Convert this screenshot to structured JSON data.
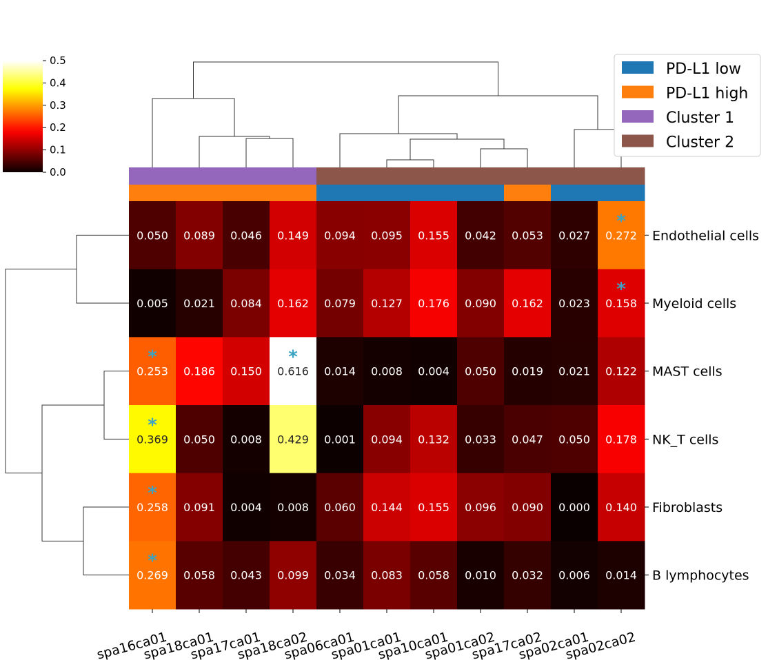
{
  "chart_data": {
    "type": "heatmap",
    "title": "",
    "columns": [
      "spa16ca01",
      "spa18ca01",
      "spa17ca01",
      "spa18ca02",
      "spa06ca01",
      "spa01ca01",
      "spa10ca01",
      "spa01ca02",
      "spa17ca02",
      "spa02ca01",
      "spa02ca02"
    ],
    "rows": [
      "Endothelial cells",
      "Myeloid cells",
      "MAST cells",
      "NK_T cells",
      "Fibroblasts",
      "B lymphocytes"
    ],
    "values": [
      [
        0.05,
        0.089,
        0.046,
        0.149,
        0.094,
        0.095,
        0.155,
        0.042,
        0.053,
        0.027,
        0.272
      ],
      [
        0.005,
        0.021,
        0.084,
        0.162,
        0.079,
        0.127,
        0.176,
        0.09,
        0.162,
        0.023,
        0.158
      ],
      [
        0.253,
        0.186,
        0.15,
        0.616,
        0.014,
        0.008,
        0.004,
        0.05,
        0.019,
        0.021,
        0.122
      ],
      [
        0.369,
        0.05,
        0.008,
        0.429,
        0.001,
        0.094,
        0.132,
        0.033,
        0.047,
        0.05,
        0.178
      ],
      [
        0.258,
        0.091,
        0.004,
        0.008,
        0.06,
        0.144,
        0.155,
        0.096,
        0.09,
        0.0,
        0.14
      ],
      [
        0.269,
        0.058,
        0.043,
        0.099,
        0.034,
        0.083,
        0.058,
        0.01,
        0.032,
        0.006,
        0.014
      ]
    ],
    "significant": [
      [
        0,
        10
      ],
      [
        1,
        10
      ],
      [
        2,
        0
      ],
      [
        2,
        3
      ],
      [
        3,
        0
      ],
      [
        4,
        0
      ],
      [
        5,
        0
      ]
    ],
    "significance_marker": "*",
    "colormap": "hot",
    "colorbar": {
      "min": 0.0,
      "max": 0.5,
      "ticks": [
        "0.0",
        "0.1",
        "0.2",
        "0.3",
        "0.4",
        "0.5"
      ]
    },
    "column_annotations": {
      "cluster": [
        "Cluster 1",
        "Cluster 1",
        "Cluster 1",
        "Cluster 1",
        "Cluster 2",
        "Cluster 2",
        "Cluster 2",
        "Cluster 2",
        "Cluster 2",
        "Cluster 2",
        "Cluster 2"
      ],
      "pdl1": [
        "PD-L1 high",
        "PD-L1 high",
        "PD-L1 high",
        "PD-L1 high",
        "PD-L1 low",
        "PD-L1 low",
        "PD-L1 low",
        "PD-L1 low",
        "PD-L1 high",
        "PD-L1 low",
        "PD-L1 low"
      ]
    },
    "legend": {
      "position": "top-right",
      "entries": [
        {
          "label": "PD-L1 low",
          "color": "#1f77b4"
        },
        {
          "label": "PD-L1 high",
          "color": "#ff7f0e"
        },
        {
          "label": "Cluster 1",
          "color": "#9467bd"
        },
        {
          "label": "Cluster 2",
          "color": "#8c564b"
        }
      ]
    },
    "colors": {
      "marker": "#3aa3c4"
    }
  }
}
